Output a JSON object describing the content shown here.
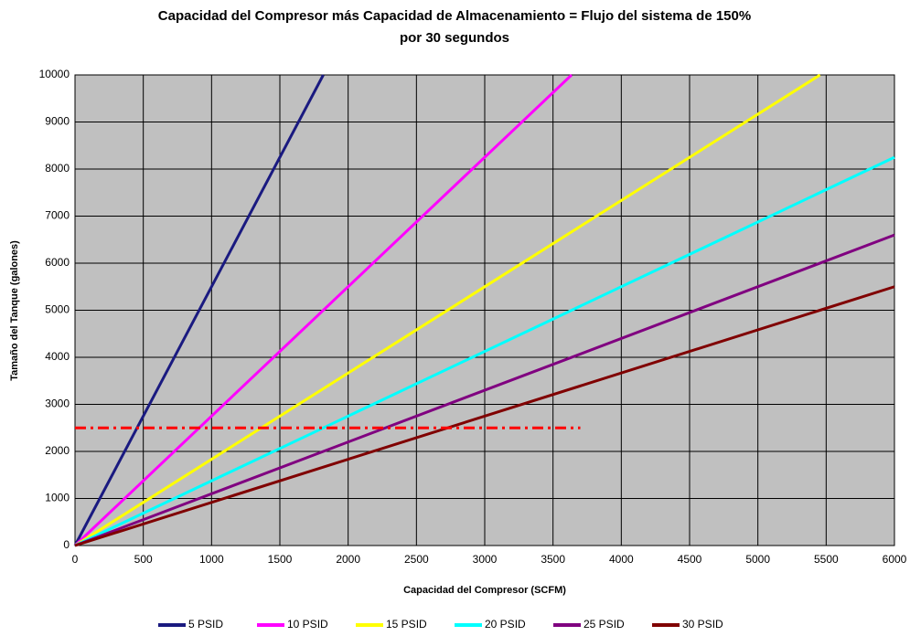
{
  "chart_data": {
    "type": "line",
    "title_lines": [
      "Capacidad del Compresor más Capacidad de Almacenamiento = Flujo del sistema de 150%",
      "por 30 segundos"
    ],
    "x_label": "Capacidad del Compresor (SCFM)",
    "y_label": "Tamaño del Tanque (galones)",
    "xlim": [
      0,
      6000
    ],
    "xticks": [
      0,
      500,
      1000,
      1500,
      2000,
      2500,
      3000,
      3500,
      4000,
      4500,
      5000,
      5500,
      6000
    ],
    "ylim": [
      0,
      10000
    ],
    "yticks": [
      0,
      1000,
      2000,
      3000,
      4000,
      5000,
      6000,
      7000,
      8000,
      9000,
      10000
    ],
    "grid": true,
    "legend": "bottom",
    "plot_background": "#c0c0c0",
    "series": [
      {
        "name": "5 PSID",
        "color": "#1a1a80",
        "x": [
          0,
          1818
        ],
        "values": [
          0,
          10000
        ]
      },
      {
        "name": "10 PSID",
        "color": "#ff00ff",
        "x": [
          0,
          3636
        ],
        "values": [
          0,
          10000
        ]
      },
      {
        "name": "15 PSID",
        "color": "#ffff00",
        "x": [
          0,
          5455
        ],
        "values": [
          0,
          10000
        ]
      },
      {
        "name": "20 PSID",
        "color": "#00ffff",
        "x": [
          0,
          6000
        ],
        "values": [
          0,
          8250
        ]
      },
      {
        "name": "25 PSID",
        "color": "#800080",
        "x": [
          0,
          6000
        ],
        "values": [
          0,
          6600
        ]
      },
      {
        "name": "30 PSID",
        "color": "#800000",
        "x": [
          0,
          6000
        ],
        "values": [
          0,
          5500
        ]
      }
    ],
    "reference_line": {
      "value": 2500,
      "x": [
        0,
        3700
      ],
      "color": "#ff0000"
    }
  }
}
